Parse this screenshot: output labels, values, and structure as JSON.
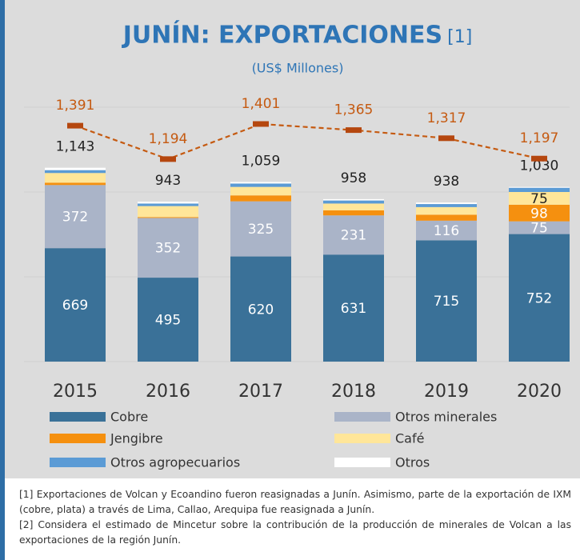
{
  "chart_data": {
    "type": "stacked_bar_line",
    "title": "JUNÍN: EXPORTACIONES",
    "title_note": "[1]",
    "subtitle": "(US$ Millones)",
    "categories": [
      "2015",
      "2016",
      "2017",
      "2018",
      "2019",
      "2020"
    ],
    "ylim": [
      0,
      1500
    ],
    "yticks": [
      0,
      500,
      1000,
      1500
    ],
    "grid": true,
    "series": [
      {
        "name": "Cobre",
        "color": "#3a7198",
        "label_color": "#ffffff",
        "labels_shown": [
          true,
          true,
          true,
          true,
          true,
          true
        ],
        "values": [
          669,
          495,
          620,
          631,
          715,
          752
        ]
      },
      {
        "name": "Otros minerales",
        "color": "#aab4c8",
        "label_color": "#ffffff",
        "labels_shown": [
          true,
          true,
          true,
          true,
          true,
          true
        ],
        "values": [
          372,
          352,
          325,
          231,
          116,
          75
        ]
      },
      {
        "name": "Jengibre",
        "color": "#f5900f",
        "label_color": "#ffffff",
        "labels_shown": [
          false,
          false,
          false,
          false,
          false,
          true
        ],
        "values": [
          14,
          5,
          35,
          30,
          35,
          98
        ]
      },
      {
        "name": "Café",
        "color": "#ffe699",
        "label_color": "#222222",
        "labels_shown": [
          false,
          false,
          false,
          false,
          false,
          true
        ],
        "values": [
          57,
          65,
          50,
          40,
          45,
          75
        ]
      },
      {
        "name": "Otros agropecuarios",
        "color": "#5b9bd5",
        "label_color": "#ffffff",
        "labels_shown": [
          false,
          false,
          false,
          false,
          false,
          false
        ],
        "values": [
          17,
          15,
          20,
          18,
          18,
          25
        ]
      },
      {
        "name": "Otros",
        "color": "#ffffff",
        "label_color": "#222222",
        "labels_shown": [
          false,
          false,
          false,
          false,
          false,
          false
        ],
        "values": [
          14,
          11,
          9,
          8,
          9,
          5
        ]
      }
    ],
    "totals": {
      "values": [
        1143,
        943,
        1059,
        958,
        938,
        1030
      ],
      "value_labels": [
        "1,143",
        "943",
        "1,059",
        "958",
        "938",
        "1,030"
      ]
    },
    "line": {
      "color": "#c55a11",
      "values": [
        1391,
        1194,
        1401,
        1365,
        1317,
        1197
      ],
      "value_labels": [
        "1,391",
        "1,194",
        "1,401",
        "1,365",
        "1,317",
        "1,197"
      ]
    },
    "footnotes": [
      "[1] Exportaciones de Volcan y Ecoandino fueron reasignadas a Junín. Asimismo, parte de la exportación de IXM (cobre, plata) a través de Lima, Callao, Arequipa fue reasignada a Junín.",
      "[2] Considera el estimado de Mincetur sobre la contribución de la producción de minerales de Volcan a las exportaciones de la región Junín."
    ]
  }
}
